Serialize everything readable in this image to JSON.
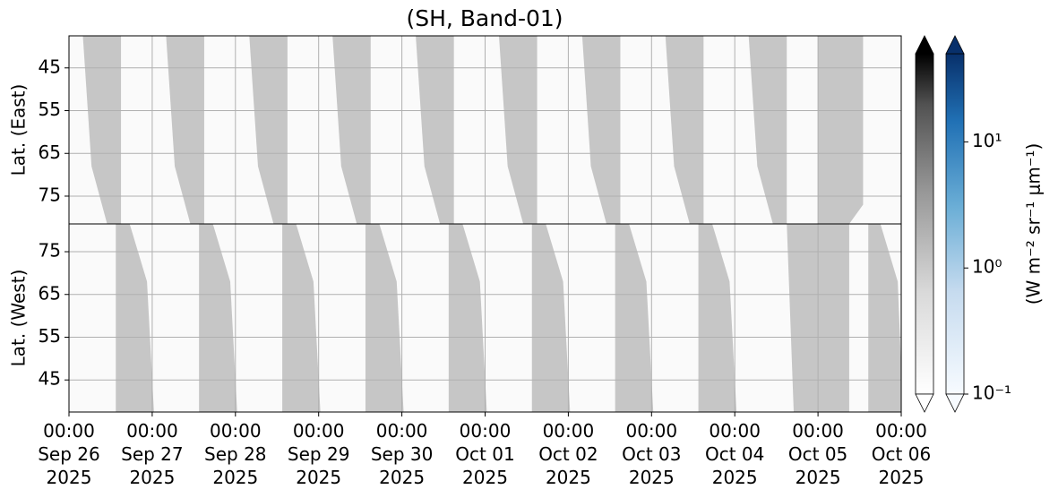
{
  "chart_data": {
    "type": "heatmap",
    "title": "(SH, Band-01)",
    "xlim": [
      "2025-09-26 00:00",
      "2025-10-06 00:00"
    ],
    "xticks": [
      {
        "value": "2025-09-26 00:00",
        "label": "00:00\nSep 26\n2025"
      },
      {
        "value": "2025-09-27 00:00",
        "label": "00:00\nSep 27\n2025"
      },
      {
        "value": "2025-09-28 00:00",
        "label": "00:00\nSep 28\n2025"
      },
      {
        "value": "2025-09-29 00:00",
        "label": "00:00\nSep 29\n2025"
      },
      {
        "value": "2025-09-30 00:00",
        "label": "00:00\nSep 30\n2025"
      },
      {
        "value": "2025-10-01 00:00",
        "label": "00:00\nOct 01\n2025"
      },
      {
        "value": "2025-10-02 00:00",
        "label": "00:00\nOct 02\n2025"
      },
      {
        "value": "2025-10-03 00:00",
        "label": "00:00\nOct 03\n2025"
      },
      {
        "value": "2025-10-04 00:00",
        "label": "00:00\nOct 04\n2025"
      },
      {
        "value": "2025-10-05 00:00",
        "label": "00:00\nOct 05\n2025"
      },
      {
        "value": "2025-10-06 00:00",
        "label": "00:00\nOct 06\n2025"
      }
    ],
    "grid": true,
    "log_scale": true,
    "clim": [
      0.1,
      50
    ],
    "swath_value": 0.4,
    "panels": [
      {
        "ylabel": "Lat. (East)",
        "ylim": [
          37.5,
          81.5
        ],
        "yticks": [
          45,
          55,
          65,
          75
        ],
        "swaths": [
          {
            "x": [
              "2025-09-26 04:00",
              "2025-09-26 15:00",
              "2025-09-26 15:00",
              "2025-09-26 11:00",
              "2025-09-26 06:30"
            ],
            "lat": [
              37.5,
              37.5,
              81.5,
              81.5,
              68
            ]
          },
          {
            "x": [
              "2025-09-27 04:00",
              "2025-09-27 15:00",
              "2025-09-27 15:00",
              "2025-09-27 11:00",
              "2025-09-27 06:30"
            ],
            "lat": [
              37.5,
              37.5,
              81.5,
              81.5,
              68
            ]
          },
          {
            "x": [
              "2025-09-28 04:00",
              "2025-09-28 15:00",
              "2025-09-28 15:00",
              "2025-09-28 11:00",
              "2025-09-28 06:30"
            ],
            "lat": [
              37.5,
              37.5,
              81.5,
              81.5,
              68
            ]
          },
          {
            "x": [
              "2025-09-29 04:00",
              "2025-09-29 15:00",
              "2025-09-29 15:00",
              "2025-09-29 11:00",
              "2025-09-29 06:30"
            ],
            "lat": [
              37.5,
              37.5,
              81.5,
              81.5,
              68
            ]
          },
          {
            "x": [
              "2025-09-30 04:00",
              "2025-09-30 15:00",
              "2025-09-30 15:00",
              "2025-09-30 11:00",
              "2025-09-30 06:30"
            ],
            "lat": [
              37.5,
              37.5,
              81.5,
              81.5,
              68
            ]
          },
          {
            "x": [
              "2025-10-01 04:00",
              "2025-10-01 15:00",
              "2025-10-01 15:00",
              "2025-10-01 11:00",
              "2025-10-01 06:30"
            ],
            "lat": [
              37.5,
              37.5,
              81.5,
              81.5,
              68
            ]
          },
          {
            "x": [
              "2025-10-02 04:00",
              "2025-10-02 15:00",
              "2025-10-02 15:00",
              "2025-10-02 11:00",
              "2025-10-02 06:30"
            ],
            "lat": [
              37.5,
              37.5,
              81.5,
              81.5,
              68
            ]
          },
          {
            "x": [
              "2025-10-03 04:00",
              "2025-10-03 15:00",
              "2025-10-03 15:00",
              "2025-10-03 11:00",
              "2025-10-03 06:30"
            ],
            "lat": [
              37.5,
              37.5,
              81.5,
              81.5,
              68
            ]
          },
          {
            "x": [
              "2025-10-04 04:00",
              "2025-10-04 15:00",
              "2025-10-04 15:00",
              "2025-10-04 11:00",
              "2025-10-04 06:30"
            ],
            "lat": [
              37.5,
              37.5,
              81.5,
              81.5,
              68
            ]
          },
          {
            "x": [
              "2025-10-05 00:00",
              "2025-10-05 13:00",
              "2025-10-05 13:00",
              "2025-10-05 09:00",
              "2025-10-05 00:00"
            ],
            "lat": [
              37.5,
              37.5,
              77,
              81.5,
              81.5
            ]
          }
        ]
      },
      {
        "ylabel": "Lat. (West)",
        "ylim": [
          81.5,
          37.5
        ],
        "yticks": [
          75,
          65,
          55,
          45
        ],
        "swaths": [
          {
            "x": [
              "2025-09-26 13:30",
              "2025-09-26 17:30",
              "2025-09-26 22:30",
              "2025-09-27 00:30",
              "2025-09-26 13:30"
            ],
            "lat": [
              81.5,
              81.5,
              68,
              37.5,
              37.5
            ]
          },
          {
            "x": [
              "2025-09-27 13:30",
              "2025-09-27 17:30",
              "2025-09-27 22:30",
              "2025-09-28 00:30",
              "2025-09-27 13:30"
            ],
            "lat": [
              81.5,
              81.5,
              68,
              37.5,
              37.5
            ]
          },
          {
            "x": [
              "2025-09-28 13:30",
              "2025-09-28 17:30",
              "2025-09-28 22:30",
              "2025-09-29 00:30",
              "2025-09-28 13:30"
            ],
            "lat": [
              81.5,
              81.5,
              68,
              37.5,
              37.5
            ]
          },
          {
            "x": [
              "2025-09-29 13:30",
              "2025-09-29 17:30",
              "2025-09-29 22:30",
              "2025-09-30 00:30",
              "2025-09-29 13:30"
            ],
            "lat": [
              81.5,
              81.5,
              68,
              37.5,
              37.5
            ]
          },
          {
            "x": [
              "2025-09-30 13:30",
              "2025-09-30 17:30",
              "2025-09-30 22:30",
              "2025-10-01 00:30",
              "2025-09-30 13:30"
            ],
            "lat": [
              81.5,
              81.5,
              68,
              37.5,
              37.5
            ]
          },
          {
            "x": [
              "2025-10-01 13:30",
              "2025-10-01 17:30",
              "2025-10-01 22:30",
              "2025-10-02 00:30",
              "2025-10-01 13:30"
            ],
            "lat": [
              81.5,
              81.5,
              68,
              37.5,
              37.5
            ]
          },
          {
            "x": [
              "2025-10-02 13:30",
              "2025-10-02 17:30",
              "2025-10-02 22:30",
              "2025-10-03 00:30",
              "2025-10-02 13:30"
            ],
            "lat": [
              81.5,
              81.5,
              68,
              37.5,
              37.5
            ]
          },
          {
            "x": [
              "2025-10-03 13:30",
              "2025-10-03 17:30",
              "2025-10-03 22:30",
              "2025-10-04 00:30",
              "2025-10-03 13:30"
            ],
            "lat": [
              81.5,
              81.5,
              68,
              37.5,
              37.5
            ]
          },
          {
            "x": [
              "2025-10-04 15:00",
              "2025-10-05 00:00",
              "2025-10-05 09:00",
              "2025-10-05 09:00",
              "2025-10-04 17:00"
            ],
            "lat": [
              81.5,
              81.5,
              81.5,
              37.5,
              37.5
            ]
          },
          {
            "x": [
              "2025-10-05 14:30",
              "2025-10-05 18:00",
              "2025-10-05 23:00",
              "2025-10-06 00:30",
              "2025-10-05 14:30"
            ],
            "lat": [
              81.5,
              81.5,
              68,
              37.5,
              37.5
            ]
          }
        ]
      }
    ],
    "colorbars": [
      {
        "cmap": "Greys",
        "extend": "both"
      },
      {
        "cmap": "Blues",
        "extend": "both",
        "ticks": [
          {
            "value": 0.1,
            "label": "10⁻¹"
          },
          {
            "value": 1,
            "label": "10⁰"
          },
          {
            "value": 10,
            "label": "10¹"
          }
        ],
        "label": "(W m⁻² sr⁻¹ μm⁻¹)"
      }
    ]
  }
}
